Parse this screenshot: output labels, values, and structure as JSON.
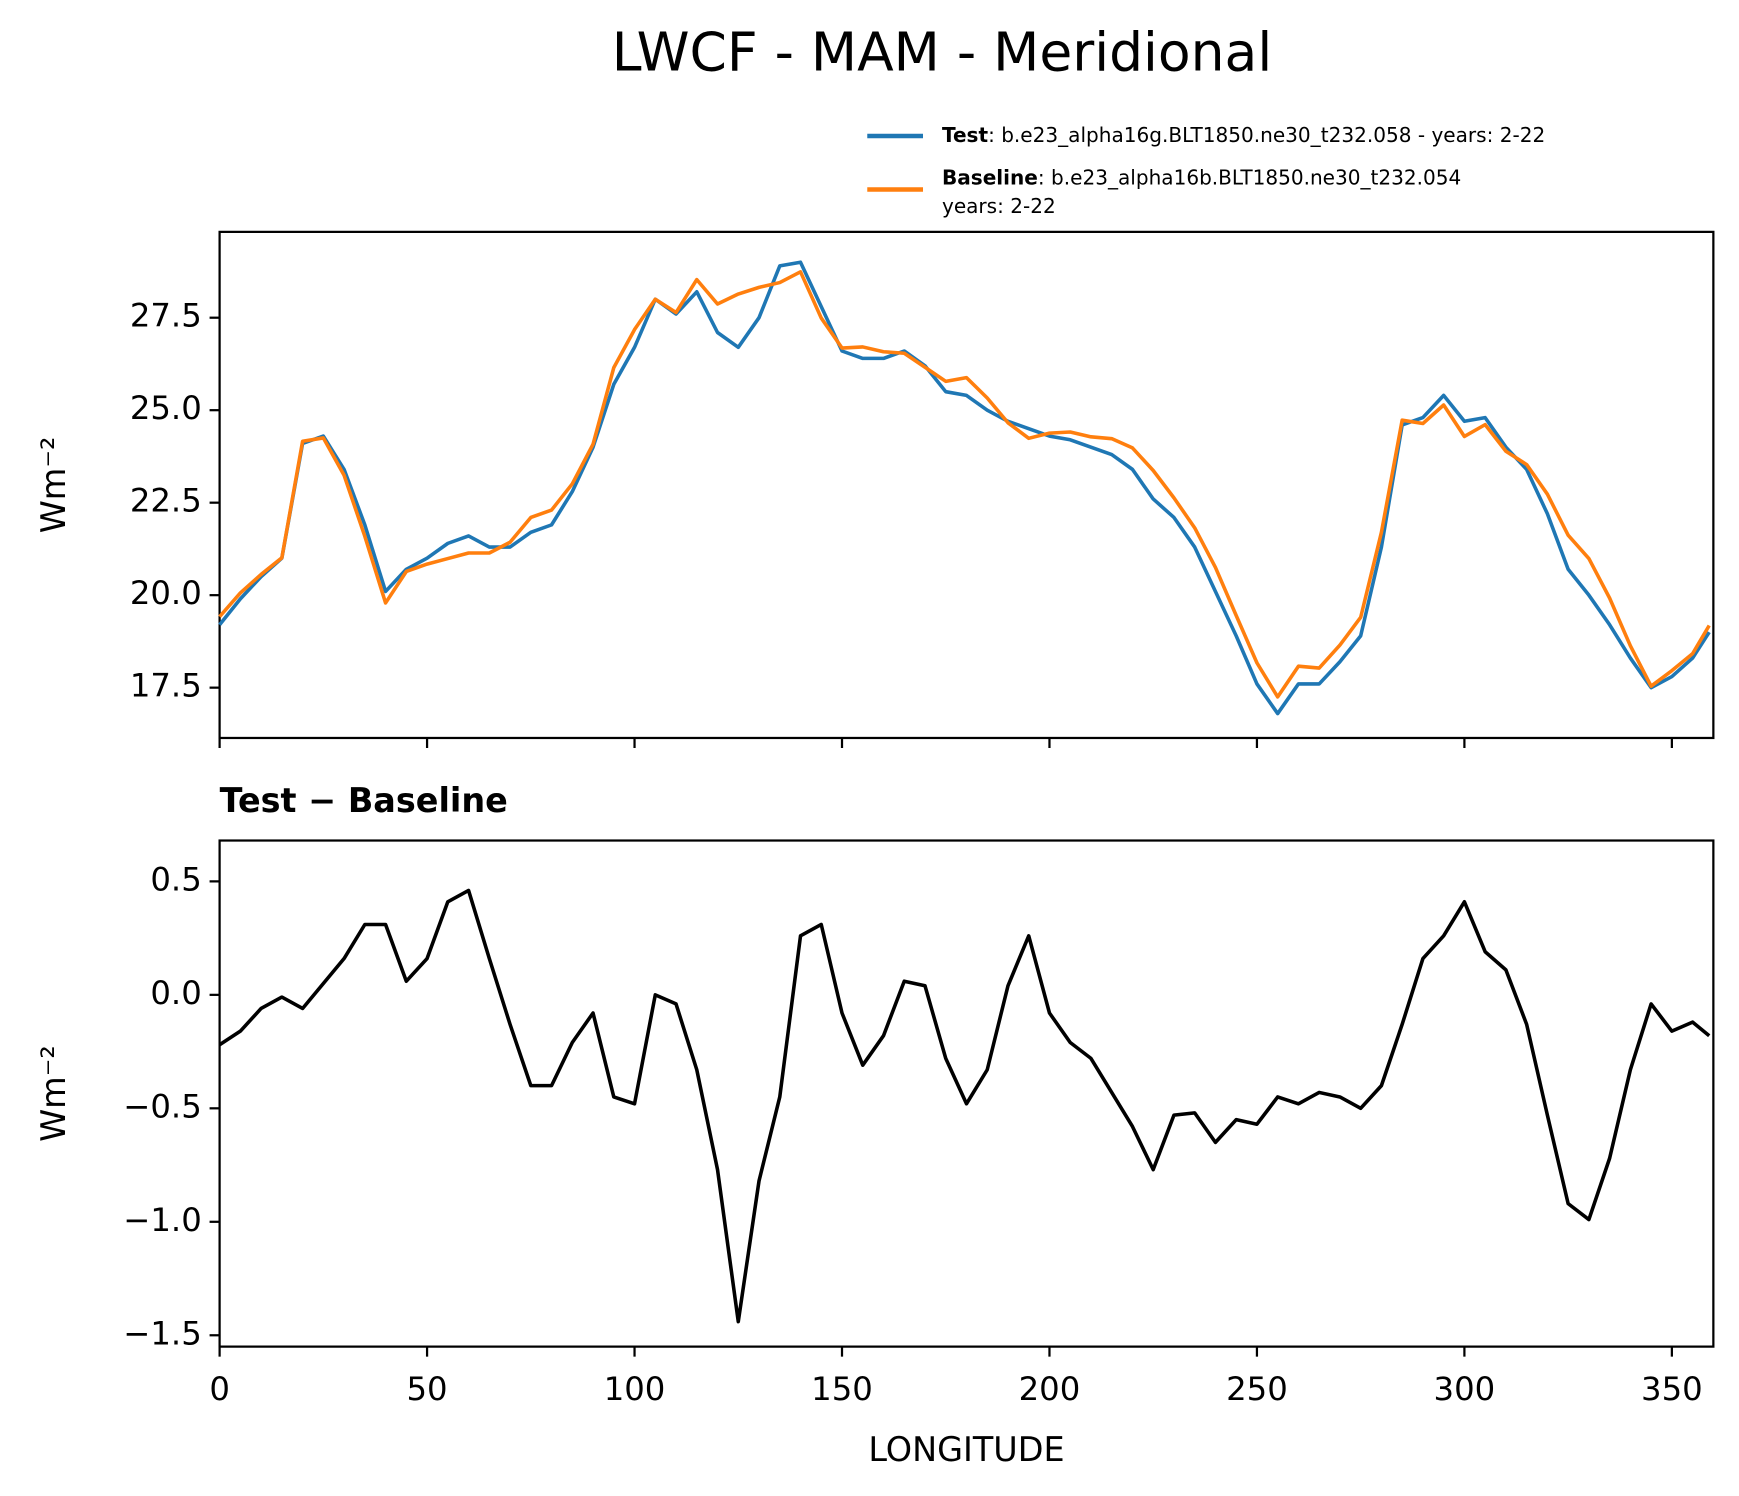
{
  "title": "LWCF - MAM - Meridional",
  "chart_data": [
    {
      "type": "line",
      "ylabel": "Wm⁻²",
      "x": [
        0,
        5,
        10,
        15,
        20,
        25,
        30,
        35,
        40,
        45,
        50,
        55,
        60,
        65,
        70,
        75,
        80,
        85,
        90,
        95,
        100,
        105,
        110,
        115,
        120,
        125,
        130,
        135,
        140,
        145,
        150,
        155,
        160,
        165,
        170,
        175,
        180,
        185,
        190,
        195,
        200,
        205,
        210,
        215,
        220,
        225,
        230,
        235,
        240,
        245,
        250,
        255,
        260,
        265,
        270,
        275,
        280,
        285,
        290,
        295,
        300,
        305,
        310,
        315,
        320,
        325,
        330,
        335,
        340,
        345,
        350,
        355,
        359
      ],
      "xlim": [
        0,
        360
      ],
      "xticks": [
        0,
        50,
        100,
        150,
        200,
        250,
        300,
        350
      ],
      "xtick_labels": false,
      "ylim": [
        16.14,
        29.82
      ],
      "yticks": [
        17.5,
        {
          "value": 20,
          "label": "20.0"
        },
        22.5,
        {
          "value": 25,
          "label": "25.0"
        },
        27.5
      ],
      "legend": "upper right",
      "series": [
        {
          "name": "Test",
          "description": [
            ": b.e23_alpha16g.BLT1850.ne30_t232.058 - years: 2-22"
          ],
          "color": "#1f77b4",
          "values": [
            19.2,
            19.9,
            20.5,
            21.0,
            24.1,
            24.3,
            23.4,
            21.9,
            20.1,
            20.7,
            21.0,
            21.4,
            21.6,
            21.3,
            21.3,
            21.7,
            21.9,
            22.8,
            24.0,
            25.7,
            26.7,
            28.0,
            27.6,
            28.2,
            27.1,
            26.7,
            27.5,
            28.9,
            29.0,
            27.8,
            26.6,
            26.4,
            26.4,
            26.6,
            26.2,
            25.5,
            25.4,
            25.0,
            24.7,
            24.5,
            24.3,
            24.2,
            24.0,
            23.8,
            23.4,
            22.6,
            22.1,
            21.3,
            20.1,
            18.9,
            17.6,
            16.8,
            17.6,
            17.6,
            18.2,
            18.9,
            21.3,
            24.6,
            24.8,
            25.4,
            24.7,
            24.8,
            24.0,
            23.4,
            22.2,
            20.7,
            20.0,
            19.2,
            18.3,
            17.5,
            17.8,
            18.3,
            19.0
          ]
        },
        {
          "name": "Baseline",
          "description": [
            ": b.e23_alpha16b.BLT1850.ne30_t232.054",
            "years: 2-22"
          ],
          "color": "#ff7f0e",
          "values": [
            19.42,
            20.06,
            20.56,
            21.01,
            24.16,
            24.25,
            23.24,
            21.59,
            19.79,
            20.64,
            20.84,
            20.99,
            21.14,
            21.14,
            21.43,
            22.1,
            22.3,
            23.01,
            24.08,
            26.15,
            27.18,
            28.0,
            27.64,
            28.53,
            27.87,
            28.14,
            28.32,
            28.45,
            28.74,
            27.49,
            26.68,
            26.71,
            26.58,
            26.54,
            26.16,
            25.78,
            25.88,
            25.33,
            24.66,
            24.24,
            24.38,
            24.41,
            24.28,
            24.23,
            23.98,
            23.37,
            22.63,
            21.82,
            20.75,
            19.45,
            18.17,
            17.25,
            18.08,
            18.03,
            18.65,
            19.4,
            21.7,
            24.73,
            24.64,
            25.14,
            24.29,
            24.61,
            23.89,
            23.53,
            22.73,
            21.62,
            20.99,
            19.92,
            18.63,
            17.54,
            17.96,
            18.42,
            19.18
          ]
        }
      ]
    },
    {
      "type": "line",
      "title": "Test − Baseline",
      "xlabel": "LONGITUDE",
      "ylabel": "Wm⁻²",
      "x": [
        0,
        5,
        10,
        15,
        20,
        25,
        30,
        35,
        40,
        45,
        50,
        55,
        60,
        65,
        70,
        75,
        80,
        85,
        90,
        95,
        100,
        105,
        110,
        115,
        120,
        125,
        130,
        135,
        140,
        145,
        150,
        155,
        160,
        165,
        170,
        175,
        180,
        185,
        190,
        195,
        200,
        205,
        210,
        215,
        220,
        225,
        230,
        235,
        240,
        245,
        250,
        255,
        260,
        265,
        270,
        275,
        280,
        285,
        290,
        295,
        300,
        305,
        310,
        315,
        320,
        325,
        330,
        335,
        340,
        345,
        350,
        355,
        359
      ],
      "xlim": [
        0,
        360
      ],
      "xticks": [
        0,
        50,
        100,
        150,
        200,
        250,
        300,
        350
      ],
      "xtick_labels": true,
      "ylim": [
        -1.55,
        0.68
      ],
      "yticks": [
        {
          "value": -1.5,
          "label": "−1.5"
        },
        {
          "value": -1,
          "label": "−1.0"
        },
        {
          "value": -0.5,
          "label": "−0.5"
        },
        {
          "value": 0,
          "label": "0.0"
        },
        0.5
      ],
      "color": "#000000",
      "values": [
        -0.22,
        -0.16,
        -0.06,
        -0.01,
        -0.06,
        0.05,
        0.16,
        0.31,
        0.31,
        0.06,
        0.16,
        0.41,
        0.46,
        0.16,
        -0.13,
        -0.4,
        -0.4,
        -0.21,
        -0.08,
        -0.45,
        -0.48,
        0.0,
        -0.04,
        -0.33,
        -0.77,
        -1.44,
        -0.82,
        -0.45,
        0.26,
        0.31,
        -0.08,
        -0.31,
        -0.18,
        0.06,
        0.04,
        -0.28,
        -0.48,
        -0.33,
        0.04,
        0.26,
        -0.08,
        -0.21,
        -0.28,
        -0.43,
        -0.58,
        -0.77,
        -0.53,
        -0.52,
        -0.65,
        -0.55,
        -0.57,
        -0.45,
        -0.48,
        -0.43,
        -0.45,
        -0.5,
        -0.4,
        -0.13,
        0.16,
        0.26,
        0.41,
        0.19,
        0.11,
        -0.13,
        -0.53,
        -0.92,
        -0.99,
        -0.72,
        -0.33,
        -0.04,
        -0.16,
        -0.12,
        -0.18
      ]
    }
  ]
}
